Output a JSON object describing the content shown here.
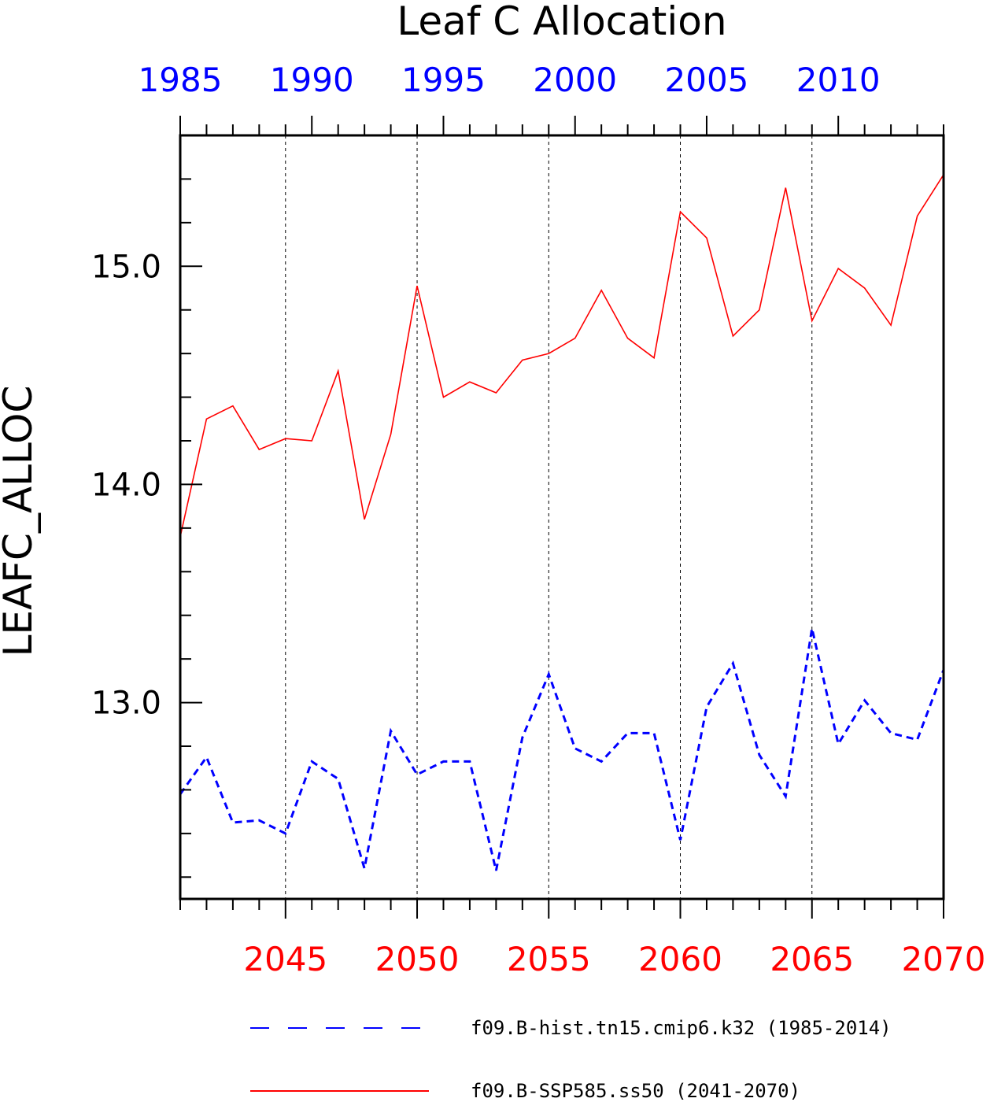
{
  "chart_data": {
    "type": "line",
    "title": "Leaf C Allocation",
    "ylabel": "LEAFC_ALLOC",
    "ylim": [
      12.1,
      15.6
    ],
    "yticks": [
      13.0,
      14.0,
      15.0
    ],
    "ytick_labels": [
      "13.0",
      "14.0",
      "15.0"
    ],
    "yminor_ticks": [
      12.2,
      12.4,
      12.6,
      12.8,
      13.2,
      13.4,
      13.6,
      13.8,
      14.2,
      14.4,
      14.6,
      14.8,
      15.2,
      15.4
    ],
    "grid": "vertical dashed at major x ticks",
    "legend_position": "bottom",
    "axes": {
      "bottom": {
        "range": [
          2041,
          2070
        ],
        "major_ticks": [
          2045,
          2050,
          2055,
          2060,
          2065,
          2070
        ],
        "labels": [
          "2045",
          "2050",
          "2055",
          "2060",
          "2065",
          "2070"
        ],
        "color": "#ff0000"
      },
      "top": {
        "range": [
          1985,
          2014
        ],
        "major_ticks": [
          1985,
          1990,
          1995,
          2000,
          2005,
          2010
        ],
        "labels": [
          "1985",
          "1990",
          "1995",
          "2000",
          "2005",
          "2010"
        ],
        "color": "#0000ff"
      }
    },
    "series": [
      {
        "name": "f09.B-hist.tn15.cmip6.k32 (1985-2014)",
        "color": "#0000ff",
        "style": "dashed",
        "axis": "top",
        "x": [
          1985,
          1986,
          1987,
          1988,
          1989,
          1990,
          1991,
          1992,
          1993,
          1994,
          1995,
          1996,
          1997,
          1998,
          1999,
          2000,
          2001,
          2002,
          2003,
          2004,
          2005,
          2006,
          2007,
          2008,
          2009,
          2010,
          2011,
          2012,
          2013,
          2014
        ],
        "y": [
          12.58,
          12.75,
          12.45,
          12.46,
          12.4,
          12.73,
          12.65,
          12.24,
          12.87,
          12.67,
          12.73,
          12.73,
          12.23,
          12.84,
          13.13,
          12.79,
          12.73,
          12.86,
          12.86,
          12.37,
          12.98,
          13.18,
          12.76,
          12.57,
          13.34,
          12.81,
          13.01,
          12.86,
          12.83,
          13.15
        ]
      },
      {
        "name": "f09.B-SSP585.ss50 (2041-2070)",
        "color": "#ff0000",
        "style": "solid",
        "axis": "bottom",
        "x": [
          2041,
          2042,
          2043,
          2044,
          2045,
          2046,
          2047,
          2048,
          2049,
          2050,
          2051,
          2052,
          2053,
          2054,
          2055,
          2056,
          2057,
          2058,
          2059,
          2060,
          2061,
          2062,
          2063,
          2064,
          2065,
          2066,
          2067,
          2068,
          2069,
          2070
        ],
        "y": [
          13.76,
          14.3,
          14.36,
          14.16,
          14.21,
          14.2,
          14.52,
          13.84,
          14.23,
          14.91,
          14.4,
          14.47,
          14.42,
          14.57,
          14.6,
          14.67,
          14.89,
          14.67,
          14.58,
          15.25,
          15.13,
          14.68,
          14.8,
          15.36,
          14.75,
          14.99,
          14.9,
          14.73,
          15.23,
          15.42
        ]
      }
    ]
  }
}
